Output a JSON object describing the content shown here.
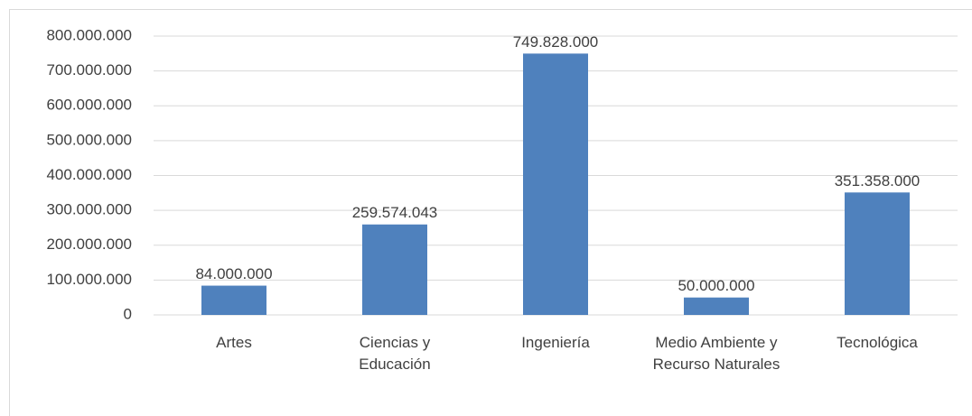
{
  "chart_data": {
    "type": "bar",
    "categories": [
      "Artes",
      "Ciencias y Educación",
      "Ingeniería",
      "Medio Ambiente y Recurso Naturales",
      "Tecnológica"
    ],
    "values": [
      84000000,
      259574043,
      749828000,
      50000000,
      351358000
    ],
    "value_labels": [
      "84.000.000",
      "259.574.043",
      "749.828.000",
      "50.000.000",
      "351.358.000"
    ],
    "color": "#4f81bd",
    "ylim": [
      0,
      800000000
    ],
    "yticks": [
      0,
      {
        "value": 100000000,
        "label": "100.000.000"
      },
      {
        "value": 200000000,
        "label": "200.000.000"
      },
      {
        "value": 300000000,
        "label": "300.000.000"
      },
      {
        "value": 400000000,
        "label": "400.000.000"
      },
      {
        "value": 500000000,
        "label": "500.000.000"
      },
      {
        "value": 600000000,
        "label": "600.000.000"
      },
      {
        "value": 700000000,
        "label": "700.000.000"
      },
      {
        "value": 800000000,
        "label": "800.000.000"
      }
    ],
    "grid": true
  }
}
